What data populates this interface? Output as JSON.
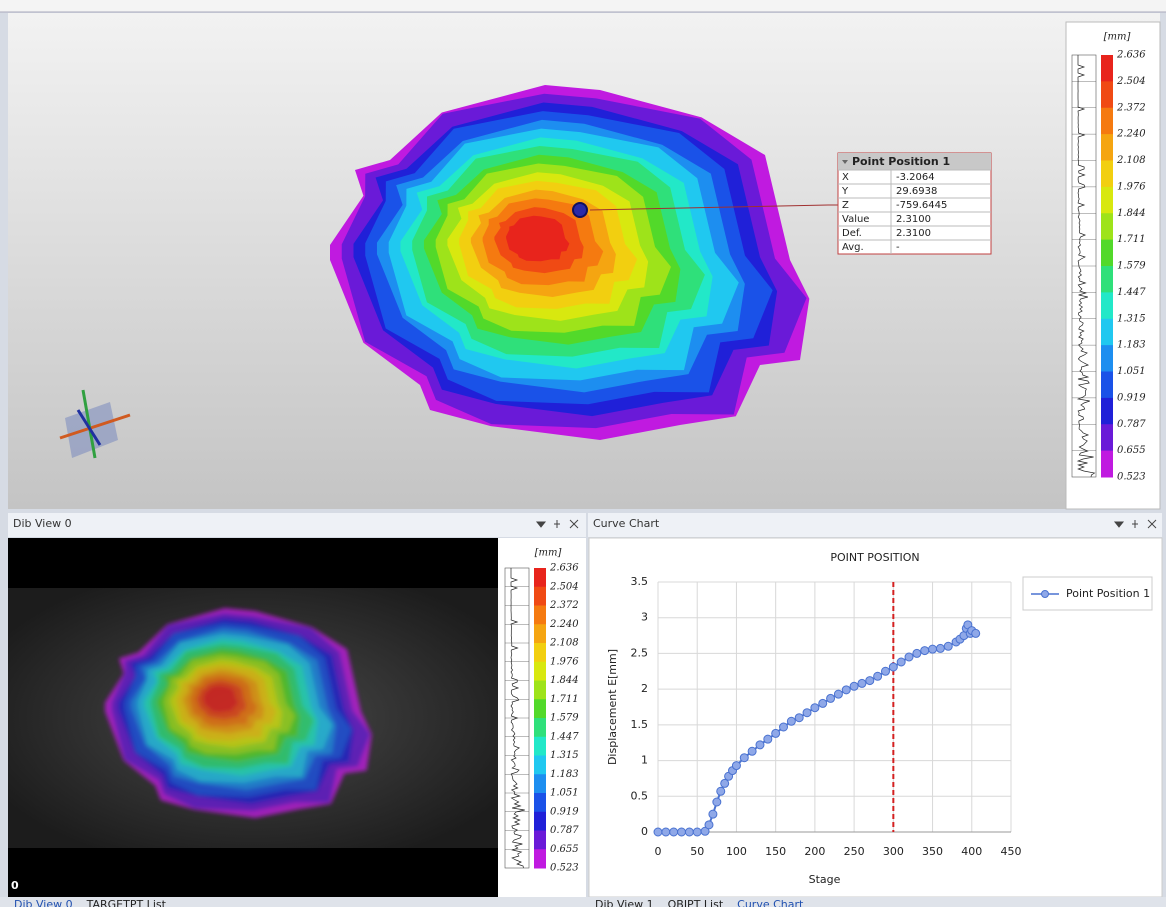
{
  "colorbar": {
    "unit": "[mm]",
    "labels": [
      "2.636",
      "2.504",
      "2.372",
      "2.240",
      "2.108",
      "1.976",
      "1.844",
      "1.711",
      "1.579",
      "1.447",
      "1.315",
      "1.183",
      "1.051",
      "0.919",
      "0.787",
      "0.655",
      "0.523"
    ],
    "colors": [
      "#e8241c",
      "#f04a14",
      "#f57a10",
      "#f5a511",
      "#f2cf10",
      "#d8e80f",
      "#9ee31a",
      "#52d92a",
      "#2fe07a",
      "#22e8c8",
      "#20c8f0",
      "#1d8ef0",
      "#1a52e8",
      "#2020d8",
      "#6a1ad8",
      "#c01ae0"
    ]
  },
  "point_table": {
    "title": "Point Position 1",
    "rows": [
      [
        "X",
        "-3.2064"
      ],
      [
        "Y",
        "29.6938"
      ],
      [
        "Z",
        "-759.6445"
      ],
      [
        "Value",
        "2.3100"
      ],
      [
        "Def.",
        "2.3100"
      ],
      [
        "Avg.",
        "-"
      ]
    ]
  },
  "dib_view": {
    "title": "Dib View 0",
    "frame": "0"
  },
  "curve_panel": {
    "title": "Curve Chart"
  },
  "chart_data": {
    "type": "line",
    "title": "POINT POSITION",
    "x_label": "Stage",
    "y_label": "Displacement E[mm]",
    "x": [
      0,
      10,
      20,
      30,
      40,
      50,
      60,
      65,
      70,
      75,
      80,
      85,
      90,
      95,
      100,
      110,
      120,
      130,
      140,
      150,
      160,
      170,
      180,
      190,
      200,
      210,
      220,
      230,
      240,
      250,
      260,
      270,
      280,
      290,
      300,
      310,
      320,
      330,
      340,
      350,
      360,
      370,
      380,
      385,
      390,
      393,
      395,
      398,
      400,
      405
    ],
    "series": [
      {
        "name": "Point Position 1",
        "color": "#4a72d0",
        "values": [
          0,
          0,
          0,
          0,
          0,
          0,
          0.01,
          0.1,
          0.25,
          0.42,
          0.57,
          0.68,
          0.78,
          0.86,
          0.93,
          1.04,
          1.13,
          1.22,
          1.3,
          1.38,
          1.47,
          1.55,
          1.6,
          1.67,
          1.74,
          1.8,
          1.87,
          1.93,
          1.99,
          2.04,
          2.08,
          2.12,
          2.18,
          2.25,
          2.31,
          2.38,
          2.45,
          2.5,
          2.54,
          2.56,
          2.57,
          2.6,
          2.66,
          2.7,
          2.75,
          2.85,
          2.9,
          2.78,
          2.82,
          2.78
        ]
      }
    ],
    "xlim": [
      0,
      450
    ],
    "xticks": [
      0,
      50,
      100,
      150,
      200,
      250,
      300,
      350,
      400,
      450
    ],
    "ylim": [
      0,
      3.5
    ],
    "yticks": [
      0,
      0.5,
      1,
      1.5,
      2,
      2.5,
      3,
      3.5
    ],
    "grid": true,
    "vline": 300,
    "vline_color": "#d42020",
    "legend": "right"
  },
  "bottom_tabs": {
    "left": [
      "Dib View 0",
      "TARGETPT List"
    ],
    "right": [
      "Dib View 1",
      "OBJPT List",
      "Curve Chart"
    ]
  }
}
